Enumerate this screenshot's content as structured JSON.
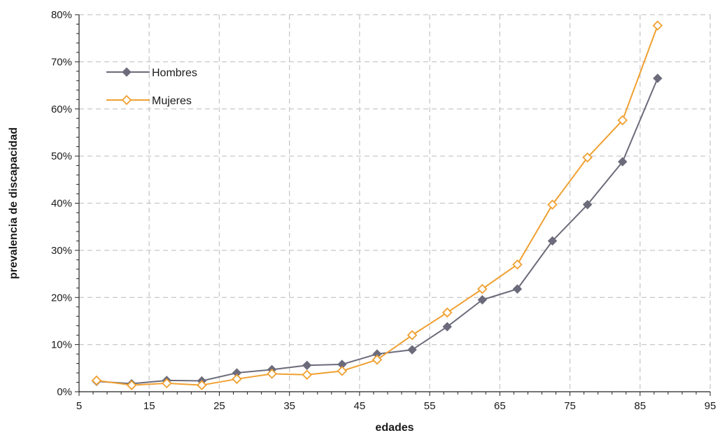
{
  "chart_data": {
    "type": "line",
    "title": "",
    "xlabel": "edades",
    "ylabel": "prevalencia de discapacidad",
    "xlim": [
      5,
      95
    ],
    "ylim": [
      0,
      80
    ],
    "x_ticks": [
      5,
      15,
      25,
      35,
      45,
      55,
      65,
      75,
      85,
      95
    ],
    "y_ticks": [
      0,
      10,
      20,
      30,
      40,
      50,
      60,
      70,
      80
    ],
    "x_tick_labels": [
      "5",
      "15",
      "25",
      "35",
      "45",
      "55",
      "65",
      "75",
      "85",
      "95"
    ],
    "y_tick_labels": [
      "0%",
      "10%",
      "20%",
      "30%",
      "40%",
      "50%",
      "60%",
      "70%",
      "80%"
    ],
    "grid": true,
    "legend_position": "top-left",
    "x": [
      7.5,
      12.5,
      17.5,
      22.5,
      27.5,
      32.5,
      37.5,
      42.5,
      47.5,
      52.5,
      57.5,
      62.5,
      67.5,
      72.5,
      77.5,
      82.5,
      87.5
    ],
    "series": [
      {
        "name": "Hombres",
        "color": "#6b6b7b",
        "marker": "diamond-filled",
        "values": [
          2.2,
          1.7,
          2.4,
          2.3,
          4.0,
          4.7,
          5.6,
          5.8,
          8.0,
          8.9,
          13.8,
          19.5,
          21.8,
          32.0,
          39.7,
          48.8,
          66.5
        ]
      },
      {
        "name": "Mujeres",
        "color": "#f0a030",
        "marker": "diamond-open",
        "values": [
          2.4,
          1.4,
          1.8,
          1.4,
          2.7,
          3.8,
          3.6,
          4.4,
          6.8,
          12.0,
          16.8,
          21.8,
          27.0,
          39.7,
          49.7,
          57.6,
          77.7
        ]
      }
    ]
  }
}
